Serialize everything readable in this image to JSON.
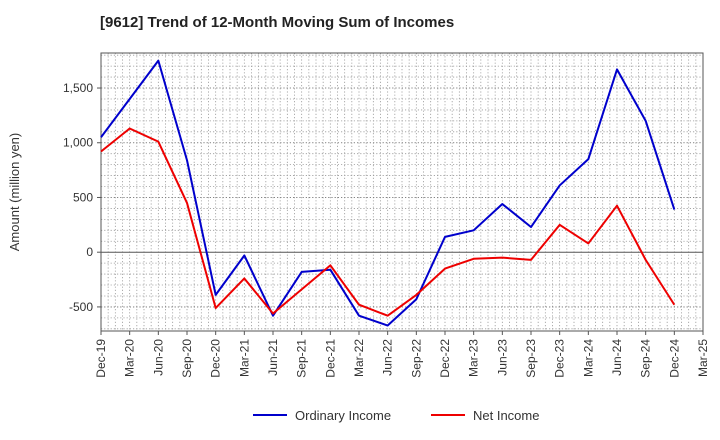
{
  "chart_data": {
    "type": "line",
    "title": "[9612]  Trend of 12-Month Moving Sum of Incomes",
    "xlabel": "",
    "ylabel": "Amount (million yen)",
    "ylim": [
      -720,
      1820
    ],
    "yticks": [
      -500,
      0,
      500,
      1000,
      1500
    ],
    "ytick_labels": [
      "-500",
      "0",
      "500",
      "1,000",
      "1,500"
    ],
    "grid": true,
    "legend_position": "bottom-center",
    "categories": [
      "Dec-19",
      "Mar-20",
      "Jun-20",
      "Sep-20",
      "Dec-20",
      "Mar-21",
      "Jun-21",
      "Sep-21",
      "Dec-21",
      "Mar-22",
      "Jun-22",
      "Sep-22",
      "Dec-22",
      "Mar-23",
      "Jun-23",
      "Sep-23",
      "Dec-23",
      "Mar-24",
      "Jun-24",
      "Sep-24",
      "Dec-24",
      "Mar-25"
    ],
    "series": [
      {
        "name": "Ordinary Income",
        "color": "#0000cc",
        "values": [
          1050,
          1400,
          1750,
          840,
          -390,
          -30,
          -580,
          -180,
          -160,
          -580,
          -670,
          -430,
          140,
          200,
          440,
          230,
          610,
          850,
          1670,
          1200,
          390,
          null
        ]
      },
      {
        "name": "Net Income",
        "color": "#ee0000",
        "values": [
          920,
          1130,
          1010,
          450,
          -510,
          -240,
          -560,
          -340,
          -120,
          -480,
          -580,
          -390,
          -150,
          -60,
          -50,
          -70,
          250,
          80,
          425,
          -70,
          -480,
          null
        ]
      }
    ]
  }
}
